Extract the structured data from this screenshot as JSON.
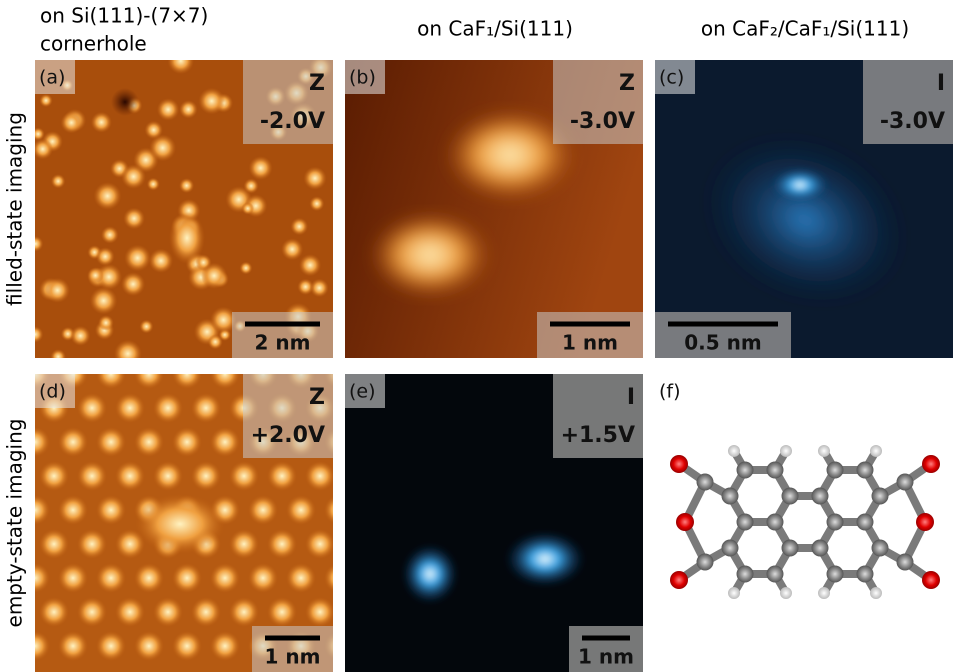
{
  "column_headers": [
    [
      "on Si(111)-(7×7)",
      "cornerhole"
    ],
    [
      "on CaF₁/Si(111)"
    ],
    [
      "on CaF₂/CaF₁/Si(111)"
    ]
  ],
  "row_labels": [
    "filled-state imaging",
    "empty-state imaging"
  ],
  "panels": [
    {
      "label": "(a)",
      "channel": "Z",
      "bias": "-2.0V",
      "scale_bar": "2 nm"
    },
    {
      "label": "(b)",
      "channel": "Z",
      "bias": "-3.0V",
      "scale_bar": "1 nm"
    },
    {
      "label": "(c)",
      "channel": "I",
      "bias": "-3.0V",
      "scale_bar": "0.5 nm"
    },
    {
      "label": "(d)",
      "channel": "Z",
      "bias": "+2.0V",
      "scale_bar": "1 nm"
    },
    {
      "label": "(e)",
      "channel": "I",
      "bias": "+1.5V",
      "scale_bar": "1 nm"
    },
    {
      "label": "(f)"
    }
  ]
}
